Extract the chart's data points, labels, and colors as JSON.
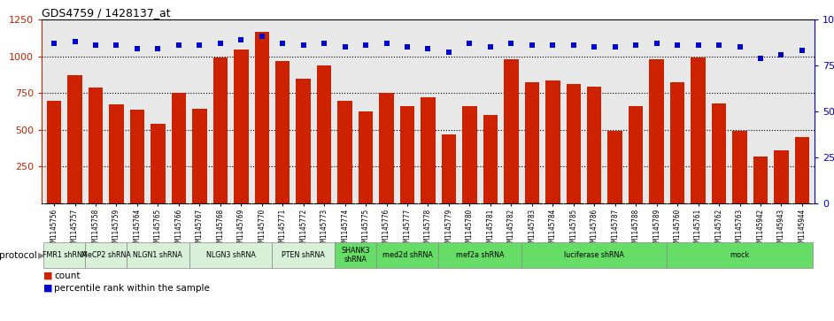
{
  "title": "GDS4759 / 1428137_at",
  "samples": [
    "GSM1145756",
    "GSM1145757",
    "GSM1145758",
    "GSM1145759",
    "GSM1145764",
    "GSM1145765",
    "GSM1145766",
    "GSM1145767",
    "GSM1145768",
    "GSM1145769",
    "GSM1145770",
    "GSM1145771",
    "GSM1145772",
    "GSM1145773",
    "GSM1145774",
    "GSM1145775",
    "GSM1145776",
    "GSM1145777",
    "GSM1145778",
    "GSM1145779",
    "GSM1145780",
    "GSM1145781",
    "GSM1145782",
    "GSM1145783",
    "GSM1145784",
    "GSM1145785",
    "GSM1145786",
    "GSM1145787",
    "GSM1145788",
    "GSM1145789",
    "GSM1145760",
    "GSM1145761",
    "GSM1145762",
    "GSM1145763",
    "GSM1145942",
    "GSM1145943",
    "GSM1145944"
  ],
  "counts": [
    700,
    870,
    785,
    675,
    635,
    540,
    750,
    645,
    990,
    1045,
    1165,
    970,
    845,
    940,
    695,
    625,
    750,
    660,
    720,
    470,
    660,
    600,
    980,
    825,
    835,
    810,
    795,
    490,
    660,
    980,
    825,
    990,
    680,
    490,
    320,
    360,
    450
  ],
  "percentiles": [
    87,
    88,
    86,
    86,
    84,
    84,
    86,
    86,
    87,
    89,
    91,
    87,
    86,
    87,
    85,
    86,
    87,
    85,
    84,
    82,
    87,
    85,
    87,
    86,
    86,
    86,
    85,
    85,
    86,
    87,
    86,
    86,
    86,
    85,
    79,
    81,
    83
  ],
  "protocols": [
    {
      "label": "FMR1 shRNA",
      "start": 0,
      "end": 2,
      "color": "#d8f0d8"
    },
    {
      "label": "MeCP2 shRNA",
      "start": 2,
      "end": 4,
      "color": "#d8f0d8"
    },
    {
      "label": "NLGN1 shRNA",
      "start": 4,
      "end": 7,
      "color": "#d8f0d8"
    },
    {
      "label": "NLGN3 shRNA",
      "start": 7,
      "end": 11,
      "color": "#d8f0d8"
    },
    {
      "label": "PTEN shRNA",
      "start": 11,
      "end": 14,
      "color": "#d8f0d8"
    },
    {
      "label": "SHANK3\nshRNA",
      "start": 14,
      "end": 16,
      "color": "#66dd66"
    },
    {
      "label": "med2d shRNA",
      "start": 16,
      "end": 19,
      "color": "#66dd66"
    },
    {
      "label": "mef2a shRNA",
      "start": 19,
      "end": 23,
      "color": "#66dd66"
    },
    {
      "label": "luciferase shRNA",
      "start": 23,
      "end": 30,
      "color": "#66dd66"
    },
    {
      "label": "mock",
      "start": 30,
      "end": 37,
      "color": "#66dd66"
    }
  ],
  "bar_color": "#cc2200",
  "dot_color": "#0000cc",
  "ylim_left": [
    0,
    1250
  ],
  "ylim_right": [
    0,
    100
  ],
  "yticks_left": [
    250,
    500,
    750,
    1000,
    1250
  ],
  "grid_lines": [
    250,
    500,
    750,
    1000
  ],
  "yticks_right": [
    0,
    25,
    50,
    75,
    100
  ],
  "bg_color": "#ffffff",
  "plot_bg_color": "#e8e8e8",
  "xticklabel_bg": "#d0d0d0"
}
